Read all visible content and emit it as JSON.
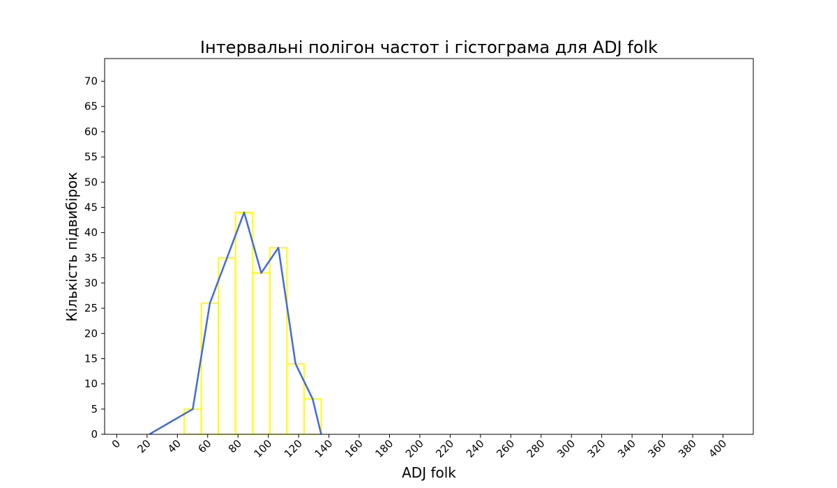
{
  "chart_data": {
    "type": "line",
    "title": "Інтервальні полігон частот і гістограма для ADJ folk",
    "xlabel": "ADJ folk",
    "ylabel": "Кількість підвибірок",
    "xlim": [
      -8,
      420
    ],
    "ylim": [
      0,
      74.5
    ],
    "xticks": [
      0,
      20,
      40,
      60,
      80,
      100,
      120,
      140,
      160,
      180,
      200,
      220,
      240,
      260,
      280,
      300,
      320,
      340,
      360,
      380,
      400
    ],
    "yticks": [
      0,
      5,
      10,
      15,
      20,
      25,
      30,
      35,
      40,
      45,
      50,
      55,
      60,
      65,
      70
    ],
    "grid": false,
    "histogram": {
      "color": "#ffff00",
      "bin_edges": [
        44.5,
        55.8,
        67.1,
        78.4,
        89.7,
        101.0,
        112.3,
        123.6,
        134.9
      ],
      "counts": [
        5,
        26,
        35,
        44,
        32,
        37,
        14,
        7
      ]
    },
    "polygon": {
      "color": "#4169e1",
      "x": [
        21.5,
        50.15,
        61.45,
        72.75,
        84.05,
        95.35,
        106.65,
        117.95,
        129.25,
        134.9
      ],
      "y": [
        0,
        5,
        26,
        35,
        44,
        32,
        37,
        14,
        7,
        0
      ]
    }
  }
}
